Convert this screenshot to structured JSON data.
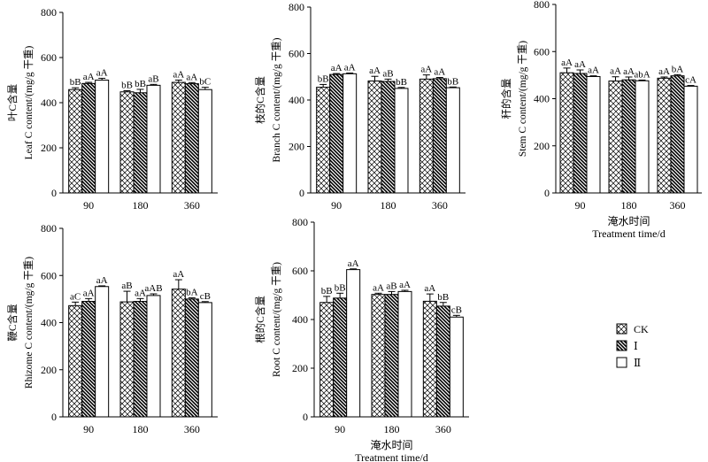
{
  "chart_data": [
    {
      "type": "bar",
      "panel": "leaf",
      "ylabel_cn": "叶C含量",
      "ylabel_en": "Leaf C content/(mg/g 干重)",
      "xlabel_cn": "",
      "xlabel_en": "",
      "ylim": [
        0,
        800
      ],
      "yticks": [
        "0",
        "200",
        "400",
        "600",
        "800"
      ],
      "categories": [
        "90",
        "180",
        "360"
      ],
      "series": [
        {
          "name": "CK",
          "values": [
            458,
            448,
            490
          ],
          "errors": [
            8,
            5,
            10
          ]
        },
        {
          "name": "Ⅰ",
          "values": [
            485,
            444,
            484
          ],
          "errors": [
            5,
            15,
            5
          ]
        },
        {
          "name": "Ⅱ",
          "values": [
            500,
            477,
            458
          ],
          "errors": [
            8,
            4,
            10
          ]
        }
      ],
      "significance": [
        [
          "bB",
          "aA",
          "aA"
        ],
        [
          "bB",
          "bB",
          "aB"
        ],
        [
          "aA",
          "aA",
          "bC"
        ]
      ]
    },
    {
      "type": "bar",
      "panel": "branch",
      "ylabel_cn": "枝的C含量",
      "ylabel_en": "Branch C content/(mg/g 干重)",
      "xlabel_cn": "",
      "xlabel_en": "",
      "ylim": [
        0,
        800
      ],
      "yticks": [
        "0",
        "200",
        "400",
        "600",
        "800"
      ],
      "categories": [
        "90",
        "180",
        "360"
      ],
      "series": [
        {
          "name": "CK",
          "values": [
            455,
            482,
            490
          ],
          "errors": [
            12,
            20,
            18
          ]
        },
        {
          "name": "Ⅰ",
          "values": [
            510,
            480,
            492
          ],
          "errors": [
            4,
            10,
            5
          ]
        },
        {
          "name": "Ⅱ",
          "values": [
            513,
            450,
            453
          ],
          "errors": [
            3,
            4,
            3
          ]
        }
      ],
      "significance": [
        [
          "bB",
          "aA",
          "aA"
        ],
        [
          "aA",
          "aB",
          "bB"
        ],
        [
          "aA",
          "aA",
          "bB"
        ]
      ]
    },
    {
      "type": "bar",
      "panel": "stem",
      "ylabel_cn": "秆的含量",
      "ylabel_en": "Stem C content/(mg/g 干重)",
      "xlabel_cn": "淹水时间",
      "xlabel_en": "Treatment time/d",
      "ylim": [
        0,
        800
      ],
      "yticks": [
        "0",
        "200",
        "400",
        "600",
        "800"
      ],
      "categories": [
        "90",
        "180",
        "360"
      ],
      "series": [
        {
          "name": "CK",
          "values": [
            510,
            475,
            487
          ],
          "errors": [
            20,
            18,
            5
          ]
        },
        {
          "name": "Ⅰ",
          "values": [
            507,
            480,
            497
          ],
          "errors": [
            15,
            12,
            5
          ]
        },
        {
          "name": "Ⅱ",
          "values": [
            494,
            476,
            453
          ],
          "errors": [
            3,
            3,
            3
          ]
        }
      ],
      "significance": [
        [
          "aA",
          "aA",
          "aA"
        ],
        [
          "aA",
          "aA",
          "abA"
        ],
        [
          "aA",
          "bA",
          "cA"
        ]
      ]
    },
    {
      "type": "bar",
      "panel": "rhizome",
      "ylabel_cn": "鞭C含量",
      "ylabel_en": "Rhizome C content/(mg/g 干重)",
      "xlabel_cn": "",
      "xlabel_en": "",
      "ylim": [
        0,
        800
      ],
      "yticks": [
        "0",
        "200",
        "400",
        "600",
        "800"
      ],
      "categories": [
        "90",
        "180",
        "360"
      ],
      "series": [
        {
          "name": "CK",
          "values": [
            472,
            488,
            542
          ],
          "errors": [
            15,
            45,
            40
          ]
        },
        {
          "name": "Ⅰ",
          "values": [
            490,
            490,
            500
          ],
          "errors": [
            12,
            12,
            5
          ]
        },
        {
          "name": "Ⅱ",
          "values": [
            553,
            515,
            485
          ],
          "errors": [
            3,
            7,
            4
          ]
        }
      ],
      "significance": [
        [
          "aC",
          "aA",
          "aA"
        ],
        [
          "aB",
          "aA",
          "aAB"
        ],
        [
          "aA",
          "bA",
          "cB"
        ]
      ]
    },
    {
      "type": "bar",
      "panel": "root",
      "ylabel_cn": "根的C含量",
      "ylabel_en": "Root C content/(mg/g 干重)",
      "xlabel_cn": "淹水时间",
      "xlabel_en": "Treatment time/d",
      "ylim": [
        0,
        800
      ],
      "yticks": [
        "0",
        "200",
        "400",
        "600",
        "800"
      ],
      "categories": [
        "90",
        "180",
        "360"
      ],
      "series": [
        {
          "name": "CK",
          "values": [
            470,
            503,
            475
          ],
          "errors": [
            25,
            5,
            30
          ]
        },
        {
          "name": "Ⅰ",
          "values": [
            488,
            503,
            455
          ],
          "errors": [
            20,
            12,
            15
          ]
        },
        {
          "name": "Ⅱ",
          "values": [
            605,
            515,
            410
          ],
          "errors": [
            3,
            5,
            7
          ]
        }
      ],
      "significance": [
        [
          "bB",
          "bB",
          "aA"
        ],
        [
          "aA",
          "aB",
          "aA"
        ],
        [
          "aA",
          "bB",
          "cB"
        ]
      ]
    }
  ],
  "legend": {
    "items": [
      "CK",
      "Ⅰ",
      "Ⅱ"
    ]
  },
  "colors": {
    "stroke": "#000000",
    "fill_ii": "#ffffff"
  }
}
